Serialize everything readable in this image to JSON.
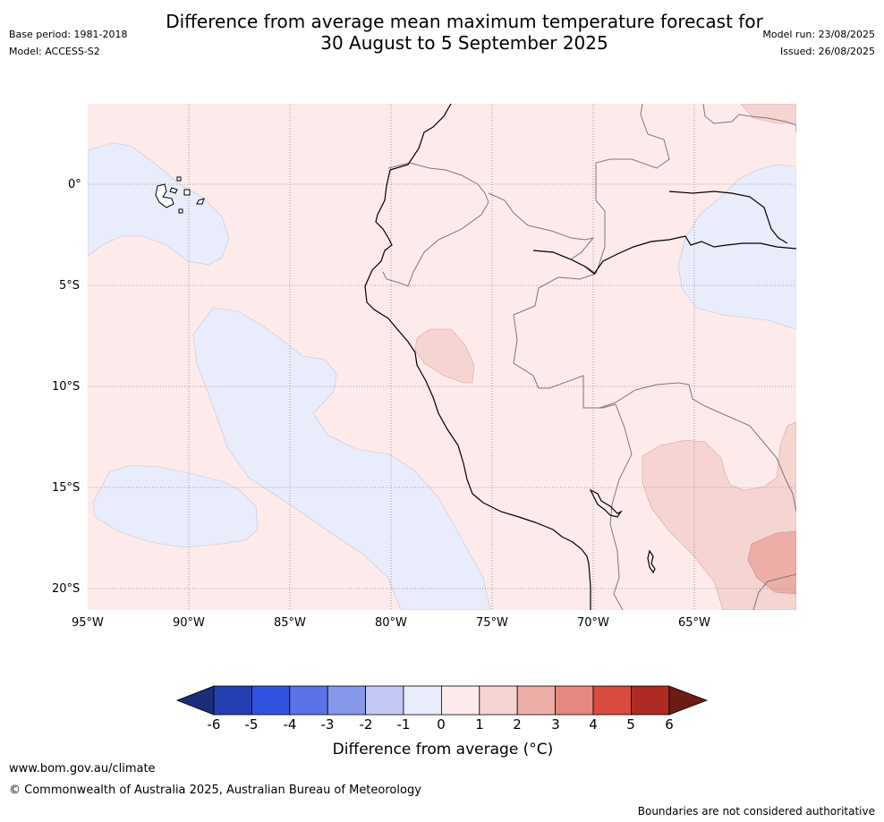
{
  "header": {
    "title_line1": "Difference from average mean maximum temperature forecast for",
    "title_line2": "30 August to 5 September 2025",
    "base_period": "Base period: 1981-2018",
    "model": "Model: ACCESS-S2",
    "model_run": "Model run: 23/08/2025",
    "issued": "Issued: 26/08/2025"
  },
  "map": {
    "lat_ticks": [
      "0°",
      "5°S",
      "10°S",
      "15°S",
      "20°S"
    ],
    "lon_ticks": [
      "95°W",
      "90°W",
      "85°W",
      "80°W",
      "75°W",
      "70°W",
      "65°W"
    ],
    "colors": {
      "background_0_to_1": "#fcebea",
      "minus1_to_0": "#e9ecfb",
      "1_to_2": "#f5d4d2",
      "2_to_3": "#edaea8"
    }
  },
  "colorbar": {
    "labels": [
      "-6",
      "-5",
      "-4",
      "-3",
      "-2",
      "-1",
      "0",
      "1",
      "2",
      "3",
      "4",
      "5",
      "6"
    ],
    "colors": [
      "#1b2d7a",
      "#243fb1",
      "#3352e0",
      "#5a73e6",
      "#8797ea",
      "#c2c9f4",
      "#e9ecfb",
      "#fcebea",
      "#f5d4d2",
      "#edaea8",
      "#e58880",
      "#d94a3f",
      "#ae2a22",
      "#6e1a15"
    ],
    "title": "Difference from average (°C)"
  },
  "footer": {
    "url": "www.bom.gov.au/climate",
    "copyright": "© Commonwealth of Australia 2025, Australian Bureau of Meteorology",
    "disclaimer": "Boundaries are not considered authoritative"
  }
}
